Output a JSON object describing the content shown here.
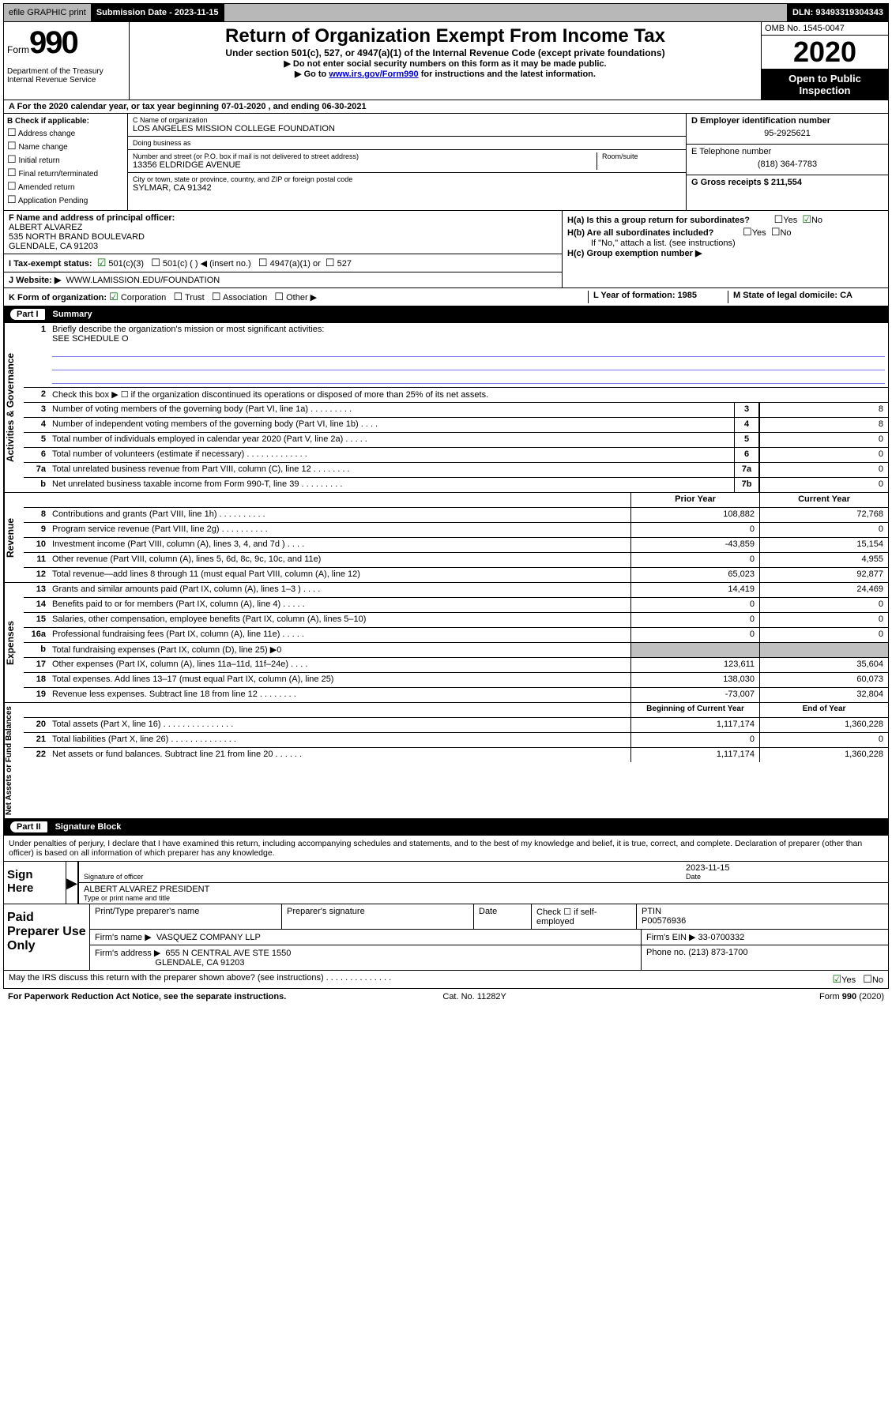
{
  "topbar": {
    "efile": "efile GRAPHIC print",
    "sub_label": "Submission Date - 2023-11-15",
    "dln": "DLN: 93493319304343"
  },
  "header": {
    "form_word": "Form",
    "form_num": "990",
    "dept": "Department of the Treasury\nInternal Revenue Service",
    "title": "Return of Organization Exempt From Income Tax",
    "subtitle": "Under section 501(c), 527, or 4947(a)(1) of the Internal Revenue Code (except private foundations)",
    "inst1": "▶ Do not enter social security numbers on this form as it may be made public.",
    "inst2_pre": "▶ Go to ",
    "inst2_link": "www.irs.gov/Form990",
    "inst2_post": " for instructions and the latest information.",
    "omb": "OMB No. 1545-0047",
    "year": "2020",
    "inspect": "Open to Public Inspection"
  },
  "row_a": "A For the 2020 calendar year, or tax year beginning 07-01-2020     , and ending 06-30-2021",
  "sec_b": {
    "label": "B Check if applicable:",
    "items": [
      "Address change",
      "Name change",
      "Initial return",
      "Final return/terminated",
      "Amended return",
      "Application Pending"
    ]
  },
  "sec_c": {
    "name_label": "C Name of organization",
    "name": "LOS ANGELES MISSION COLLEGE FOUNDATION",
    "dba_label": "Doing business as",
    "dba": "",
    "addr_label": "Number and street (or P.O. box if mail is not delivered to street address)",
    "room_label": "Room/suite",
    "addr": "13356 ELDRIDGE AVENUE",
    "city_label": "City or town, state or province, country, and ZIP or foreign postal code",
    "city": "SYLMAR, CA  91342"
  },
  "sec_d": {
    "ein_label": "D Employer identification number",
    "ein": "95-2925621",
    "tel_label": "E Telephone number",
    "tel": "(818) 364-7783",
    "gross_label": "G Gross receipts $ 211,554"
  },
  "sec_f": {
    "label": "F  Name and address of principal officer:",
    "name": "ALBERT ALVAREZ",
    "addr1": "535 NORTH BRAND BOULEVARD",
    "addr2": "GLENDALE, CA  91203"
  },
  "sec_h": {
    "ha": "H(a)  Is this a group return for subordinates?",
    "hb": "H(b)  Are all subordinates included?",
    "hb_note": "If \"No,\" attach a list. (see instructions)",
    "hc": "H(c)  Group exemption number ▶",
    "yes": "Yes",
    "no": "No"
  },
  "sec_i": {
    "label": "I  Tax-exempt status:",
    "o1": "501(c)(3)",
    "o2": "501(c) (   ) ◀ (insert no.)",
    "o3": "4947(a)(1) or",
    "o4": "527"
  },
  "sec_j": {
    "label": "J  Website: ▶",
    "val": "WWW.LAMISSION.EDU/FOUNDATION"
  },
  "sec_k": {
    "label": "K Form of organization:",
    "o1": "Corporation",
    "o2": "Trust",
    "o3": "Association",
    "o4": "Other ▶"
  },
  "sec_l": {
    "label": "L Year of formation: 1985"
  },
  "sec_m": {
    "label": "M State of legal domicile: CA"
  },
  "part1": {
    "num": "Part I",
    "title": "Summary"
  },
  "summary": {
    "gov": {
      "tab": "Activities & Governance",
      "q1": "Briefly describe the organization's mission or most significant activities:",
      "q1v": "SEE SCHEDULE O",
      "q2": "Check this box ▶ ☐  if the organization discontinued its operations or disposed of more than 25% of its net assets.",
      "rows": [
        {
          "n": "3",
          "t": "Number of voting members of the governing body (Part VI, line 1a)  .  .  .  .  .  .  .  .  .",
          "ln": "3",
          "v": "8"
        },
        {
          "n": "4",
          "t": "Number of independent voting members of the governing body (Part VI, line 1b)  .  .  .  .",
          "ln": "4",
          "v": "8"
        },
        {
          "n": "5",
          "t": "Total number of individuals employed in calendar year 2020 (Part V, line 2a)  .  .  .  .  .",
          "ln": "5",
          "v": "0"
        },
        {
          "n": "6",
          "t": "Total number of volunteers (estimate if necessary)  .  .  .  .  .  .  .  .  .  .  .  .  .",
          "ln": "6",
          "v": "0"
        },
        {
          "n": "7a",
          "t": "Total unrelated business revenue from Part VIII, column (C), line 12  .  .  .  .  .  .  .  .",
          "ln": "7a",
          "v": "0"
        },
        {
          "n": "b",
          "t": "Net unrelated business taxable income from Form 990-T, line 39  .  .  .  .  .  .  .  .  .",
          "ln": "7b",
          "v": "0"
        }
      ]
    },
    "rev": {
      "tab": "Revenue",
      "h1": "Prior Year",
      "h2": "Current Year",
      "rows": [
        {
          "n": "8",
          "t": "Contributions and grants (Part VIII, line 1h)  .  .  .  .  .  .  .  .  .  .",
          "v1": "108,882",
          "v2": "72,768"
        },
        {
          "n": "9",
          "t": "Program service revenue (Part VIII, line 2g)  .  .  .  .  .  .  .  .  .  .",
          "v1": "0",
          "v2": "0"
        },
        {
          "n": "10",
          "t": "Investment income (Part VIII, column (A), lines 3, 4, and 7d )  .  .  .  .",
          "v1": "-43,859",
          "v2": "15,154"
        },
        {
          "n": "11",
          "t": "Other revenue (Part VIII, column (A), lines 5, 6d, 8c, 9c, 10c, and 11e)",
          "v1": "0",
          "v2": "4,955"
        },
        {
          "n": "12",
          "t": "Total revenue—add lines 8 through 11 (must equal Part VIII, column (A), line 12)",
          "v1": "65,023",
          "v2": "92,877"
        }
      ]
    },
    "exp": {
      "tab": "Expenses",
      "rows": [
        {
          "n": "13",
          "t": "Grants and similar amounts paid (Part IX, column (A), lines 1–3 )  .  .  .  .",
          "v1": "14,419",
          "v2": "24,469"
        },
        {
          "n": "14",
          "t": "Benefits paid to or for members (Part IX, column (A), line 4)  .  .  .  .  .",
          "v1": "0",
          "v2": "0"
        },
        {
          "n": "15",
          "t": "Salaries, other compensation, employee benefits (Part IX, column (A), lines 5–10)",
          "v1": "0",
          "v2": "0"
        },
        {
          "n": "16a",
          "t": "Professional fundraising fees (Part IX, column (A), line 11e)  .  .  .  .  .",
          "v1": "0",
          "v2": "0"
        },
        {
          "n": "b",
          "t": "Total fundraising expenses (Part IX, column (D), line 25) ▶0",
          "v1": "",
          "v2": "",
          "gray": true
        },
        {
          "n": "17",
          "t": "Other expenses (Part IX, column (A), lines 11a–11d, 11f–24e)  .  .  .  .",
          "v1": "123,611",
          "v2": "35,604"
        },
        {
          "n": "18",
          "t": "Total expenses. Add lines 13–17 (must equal Part IX, column (A), line 25)",
          "v1": "138,030",
          "v2": "60,073"
        },
        {
          "n": "19",
          "t": "Revenue less expenses. Subtract line 18 from line 12  .  .  .  .  .  .  .  .",
          "v1": "-73,007",
          "v2": "32,804"
        }
      ]
    },
    "net": {
      "tab": "Net Assets or Fund Balances",
      "h1": "Beginning of Current Year",
      "h2": "End of Year",
      "rows": [
        {
          "n": "20",
          "t": "Total assets (Part X, line 16)  .  .  .  .  .  .  .  .  .  .  .  .  .  .  .",
          "v1": "1,117,174",
          "v2": "1,360,228"
        },
        {
          "n": "21",
          "t": "Total liabilities (Part X, line 26)  .  .  .  .  .  .  .  .  .  .  .  .  .  .",
          "v1": "0",
          "v2": "0"
        },
        {
          "n": "22",
          "t": "Net assets or fund balances. Subtract line 21 from line 20  .  .  .  .  .  .",
          "v1": "1,117,174",
          "v2": "1,360,228"
        }
      ]
    }
  },
  "part2": {
    "num": "Part II",
    "title": "Signature Block"
  },
  "sig_text": "Under penalties of perjury, I declare that I have examined this return, including accompanying schedules and statements, and to the best of my knowledge and belief, it is true, correct, and complete. Declaration of preparer (other than officer) is based on all information of which preparer has any knowledge.",
  "sign": {
    "label": "Sign Here",
    "l1": "Signature of officer",
    "date": "2023-11-15",
    "dlab": "Date",
    "l2v": "ALBERT ALVAREZ  PRESIDENT",
    "l2": "Type or print name and title"
  },
  "prep": {
    "label": "Paid Preparer Use Only",
    "h1": "Print/Type preparer's name",
    "h2": "Preparer's signature",
    "h3": "Date",
    "h4a": "Check ☐ if self-employed",
    "h5": "PTIN",
    "h5v": "P00576936",
    "r2a": "Firm's name    ▶",
    "r2av": "VASQUEZ COMPANY LLP",
    "r2b": "Firm's EIN ▶ 33-0700332",
    "r3a": "Firm's address ▶",
    "r3av": "655 N CENTRAL AVE STE 1550",
    "r3b": "Phone no. (213) 873-1700",
    "r3av2": "GLENDALE, CA  91203"
  },
  "discuss": "May the IRS discuss this return with the preparer shown above? (see instructions)  .  .  .  .  .  .  .  .  .  .  .  .  .  .",
  "footer": {
    "l": "For Paperwork Reduction Act Notice, see the separate instructions.",
    "c": "Cat. No. 11282Y",
    "r": "Form 990 (2020)"
  }
}
